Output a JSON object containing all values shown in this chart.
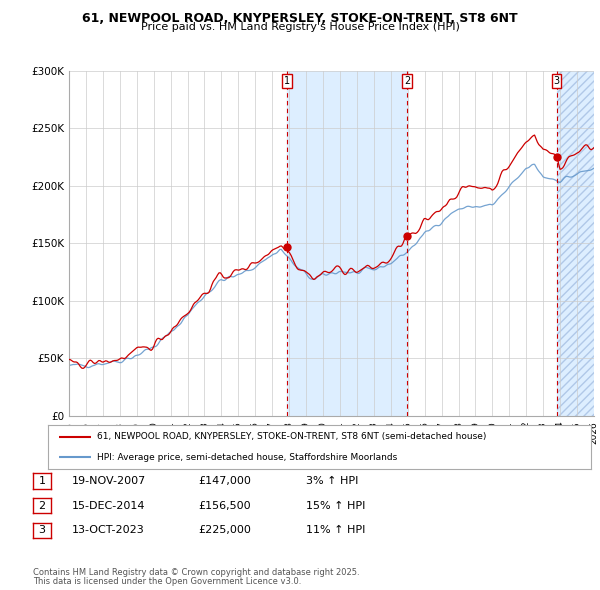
{
  "title_line1": "61, NEWPOOL ROAD, KNYPERSLEY, STOKE-ON-TRENT, ST8 6NT",
  "title_line2": "Price paid vs. HM Land Registry's House Price Index (HPI)",
  "ylabel_ticks": [
    "£0",
    "£50K",
    "£100K",
    "£150K",
    "£200K",
    "£250K",
    "£300K"
  ],
  "ytick_values": [
    0,
    50000,
    100000,
    150000,
    200000,
    250000,
    300000
  ],
  "ylim": [
    0,
    300000
  ],
  "xlim_start": 1995.0,
  "xlim_end": 2026.0,
  "sale_dates_num": [
    2007.89,
    2014.96,
    2023.79
  ],
  "sale_prices": [
    147000,
    156500,
    225000
  ],
  "sale_labels": [
    "1",
    "2",
    "3"
  ],
  "sale_date_strs": [
    "19-NOV-2007",
    "15-DEC-2014",
    "13-OCT-2023"
  ],
  "sale_price_strs": [
    "£147,000",
    "£156,500",
    "£225,000"
  ],
  "sale_hpi_strs": [
    "3% ↑ HPI",
    "15% ↑ HPI",
    "11% ↑ HPI"
  ],
  "legend_line1": "61, NEWPOOL ROAD, KNYPERSLEY, STOKE-ON-TRENT, ST8 6NT (semi-detached house)",
  "legend_line2": "HPI: Average price, semi-detached house, Staffordshire Moorlands",
  "footer_line1": "Contains HM Land Registry data © Crown copyright and database right 2025.",
  "footer_line2": "This data is licensed under the Open Government Licence v3.0.",
  "hpi_color": "#6699cc",
  "price_color": "#cc0000",
  "shade_color": "#ddeeff",
  "vertical_line_color": "#cc0000",
  "background_color": "#ffffff",
  "grid_color": "#cccccc",
  "hpi_anchors": [
    [
      1995.0,
      43000
    ],
    [
      1996.0,
      44500
    ],
    [
      1997.0,
      46000
    ],
    [
      1998.0,
      48000
    ],
    [
      1999.0,
      53000
    ],
    [
      2000.0,
      60000
    ],
    [
      2001.0,
      72000
    ],
    [
      2002.0,
      88000
    ],
    [
      2003.0,
      105000
    ],
    [
      2004.0,
      118000
    ],
    [
      2005.0,
      122000
    ],
    [
      2006.0,
      130000
    ],
    [
      2007.5,
      145000
    ],
    [
      2008.5,
      128000
    ],
    [
      2009.5,
      118000
    ],
    [
      2010.0,
      122000
    ],
    [
      2011.0,
      126000
    ],
    [
      2012.0,
      124000
    ],
    [
      2013.0,
      127000
    ],
    [
      2014.0,
      133000
    ],
    [
      2015.0,
      143000
    ],
    [
      2016.0,
      158000
    ],
    [
      2017.0,
      170000
    ],
    [
      2018.0,
      180000
    ],
    [
      2019.0,
      182000
    ],
    [
      2020.0,
      183000
    ],
    [
      2021.0,
      198000
    ],
    [
      2022.0,
      215000
    ],
    [
      2022.5,
      218000
    ],
    [
      2023.0,
      208000
    ],
    [
      2024.0,
      205000
    ],
    [
      2025.0,
      210000
    ],
    [
      2026.0,
      215000
    ]
  ],
  "price_anchors": [
    [
      1995.0,
      44000
    ],
    [
      1996.0,
      45500
    ],
    [
      1997.0,
      47000
    ],
    [
      1998.0,
      49500
    ],
    [
      1999.0,
      55000
    ],
    [
      2000.0,
      62000
    ],
    [
      2001.0,
      75000
    ],
    [
      2002.0,
      91000
    ],
    [
      2003.0,
      107000
    ],
    [
      2004.0,
      122000
    ],
    [
      2005.0,
      125000
    ],
    [
      2006.0,
      134000
    ],
    [
      2007.5,
      149000
    ],
    [
      2007.89,
      147000
    ],
    [
      2008.5,
      130000
    ],
    [
      2009.5,
      120000
    ],
    [
      2010.0,
      124000
    ],
    [
      2011.0,
      128000
    ],
    [
      2012.0,
      126000
    ],
    [
      2013.0,
      129000
    ],
    [
      2014.0,
      136000
    ],
    [
      2014.96,
      156500
    ],
    [
      2015.5,
      157000
    ],
    [
      2016.0,
      168000
    ],
    [
      2017.0,
      182000
    ],
    [
      2018.0,
      195000
    ],
    [
      2019.0,
      200000
    ],
    [
      2020.0,
      198000
    ],
    [
      2021.0,
      218000
    ],
    [
      2022.0,
      238000
    ],
    [
      2022.5,
      245000
    ],
    [
      2023.0,
      232000
    ],
    [
      2023.79,
      225000
    ],
    [
      2024.0,
      215000
    ],
    [
      2024.5,
      225000
    ],
    [
      2025.0,
      230000
    ],
    [
      2026.0,
      235000
    ]
  ]
}
